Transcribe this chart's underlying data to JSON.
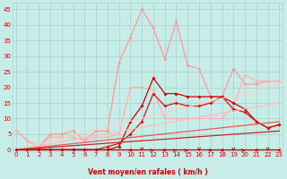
{
  "xlabel": "Vent moyen/en rafales ( km/h )",
  "ylabel_ticks": [
    0,
    5,
    10,
    15,
    20,
    25,
    30,
    35,
    40,
    45
  ],
  "xlim": [
    -0.3,
    23.3
  ],
  "ylim": [
    -0.5,
    47
  ],
  "xtick_labels": [
    "0",
    "1",
    "2",
    "3",
    "4",
    "5",
    "6",
    "7",
    "8",
    "9",
    "10",
    "11",
    "12",
    "13",
    "14",
    "15",
    "16",
    "17",
    "18",
    "19",
    "20",
    "21",
    "22",
    "23"
  ],
  "bg_color": "#c8ede8",
  "grid_color": "#a8d8d0",
  "series": [
    {
      "name": "peak_pink",
      "x": [
        0,
        1,
        2,
        3,
        4,
        5,
        6,
        7,
        8,
        9,
        10,
        11,
        12,
        13,
        14,
        15,
        16,
        17,
        18,
        19,
        20,
        21,
        22,
        23
      ],
      "y": [
        6,
        3,
        1,
        5,
        5,
        6,
        3,
        6,
        6,
        28,
        36,
        45,
        39,
        29,
        41,
        27,
        26,
        17,
        17,
        26,
        21,
        21,
        22,
        22
      ],
      "color": "#ff9999",
      "lw": 0.9,
      "marker": "D",
      "ms": 2.0
    },
    {
      "name": "medium_pink",
      "x": [
        0,
        1,
        2,
        3,
        4,
        5,
        6,
        7,
        8,
        9,
        10,
        11,
        12,
        13,
        14,
        15,
        16,
        17,
        18,
        19,
        20,
        21,
        22,
        23
      ],
      "y": [
        6,
        3,
        1,
        4,
        4,
        4,
        3,
        4,
        4,
        5,
        20,
        20,
        19,
        10,
        10,
        10,
        10,
        10,
        10,
        14,
        24,
        22,
        22,
        22
      ],
      "color": "#ffb0b0",
      "lw": 0.9,
      "marker": "D",
      "ms": 2.0
    },
    {
      "name": "dark_red_main",
      "x": [
        0,
        1,
        2,
        3,
        4,
        5,
        6,
        7,
        8,
        9,
        10,
        11,
        12,
        13,
        14,
        15,
        16,
        17,
        18,
        19,
        20,
        21,
        22,
        23
      ],
      "y": [
        0,
        0,
        0,
        0,
        0,
        0,
        0,
        0,
        0,
        1,
        9,
        14,
        23,
        18,
        18,
        17,
        17,
        17,
        17,
        15,
        13,
        9,
        7,
        8
      ],
      "color": "#cc0000",
      "lw": 0.9,
      "marker": "D",
      "ms": 2.0
    },
    {
      "name": "dark_red2",
      "x": [
        0,
        1,
        2,
        3,
        4,
        5,
        6,
        7,
        8,
        9,
        10,
        11,
        12,
        13,
        14,
        15,
        16,
        17,
        18,
        19,
        20,
        21,
        22,
        23
      ],
      "y": [
        0,
        0,
        0,
        0,
        0,
        0,
        0,
        0,
        1,
        2,
        5,
        9,
        18,
        14,
        15,
        14,
        14,
        15,
        17,
        13,
        12,
        9,
        7,
        8
      ],
      "color": "#dd1111",
      "lw": 0.9,
      "marker": "D",
      "ms": 2.0
    },
    {
      "name": "linear_pale1",
      "x": [
        0,
        23
      ],
      "y": [
        0,
        21
      ],
      "color": "#ffcccc",
      "lw": 0.9,
      "marker": null,
      "ms": 0
    },
    {
      "name": "linear_pale2",
      "x": [
        0,
        23
      ],
      "y": [
        0,
        15
      ],
      "color": "#ffbbbb",
      "lw": 0.9,
      "marker": null,
      "ms": 0
    },
    {
      "name": "linear_med1",
      "x": [
        0,
        23
      ],
      "y": [
        0,
        9
      ],
      "color": "#ee5555",
      "lw": 0.9,
      "marker": null,
      "ms": 0
    },
    {
      "name": "linear_med2",
      "x": [
        0,
        23
      ],
      "y": [
        0,
        6
      ],
      "color": "#cc2222",
      "lw": 0.9,
      "marker": null,
      "ms": 0
    },
    {
      "name": "flat_zero",
      "x": [
        0,
        23
      ],
      "y": [
        0,
        0
      ],
      "color": "#aa0000",
      "lw": 0.9,
      "marker": null,
      "ms": 0
    }
  ],
  "wind_arrows_x": [
    10,
    11,
    12,
    13,
    14,
    15,
    16,
    17,
    18,
    19,
    20,
    21,
    22,
    23
  ],
  "wind_arrows_angles_deg": [
    225,
    180,
    90,
    135,
    90,
    90,
    180,
    135,
    225,
    180,
    90,
    225,
    180,
    225
  ],
  "text_color": "#cc0000",
  "label_fontsize": 5.5,
  "tick_fontsize": 5.0,
  "figsize": [
    3.2,
    2.0
  ],
  "dpi": 100
}
